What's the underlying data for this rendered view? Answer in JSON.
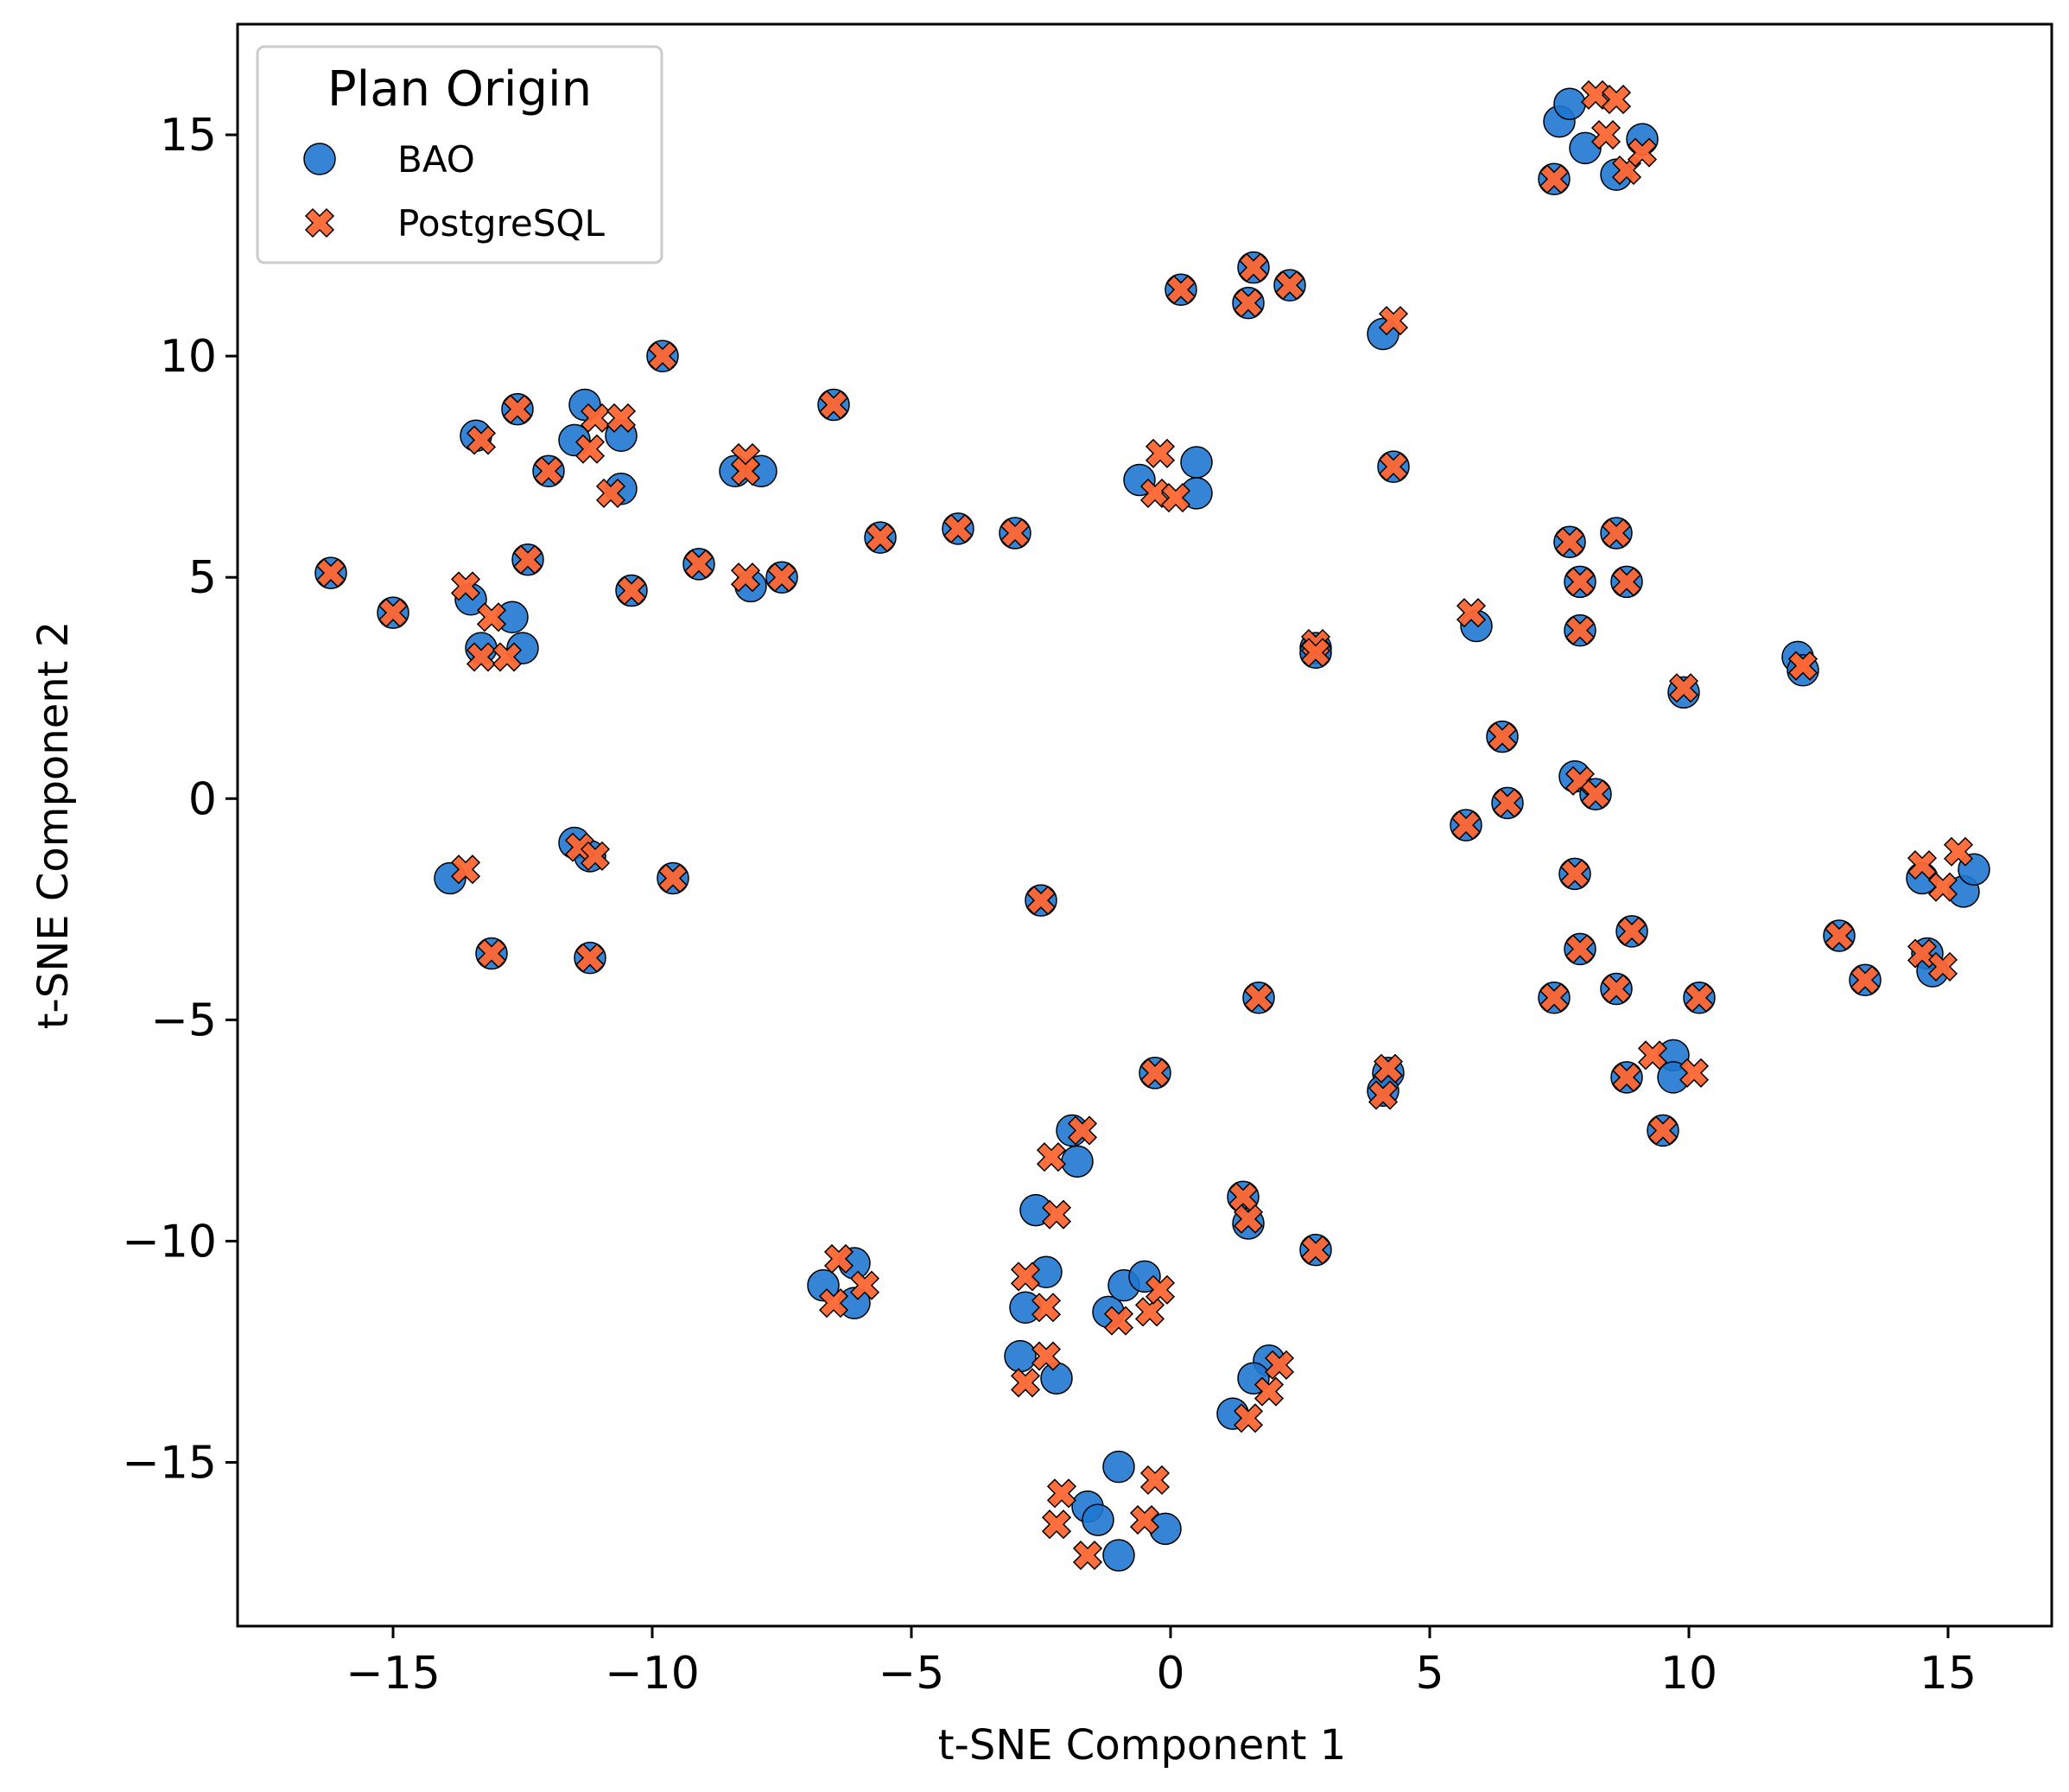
{
  "chart_data": {
    "type": "scatter",
    "xlabel": "t-SNE Component 1",
    "ylabel": "t-SNE Component 2",
    "xlim": [
      -18,
      17
    ],
    "ylim": [
      -18.7,
      17.5
    ],
    "xticks": [
      -15,
      -10,
      -5,
      0,
      5,
      10,
      15
    ],
    "yticks": [
      -15,
      -10,
      -5,
      0,
      5,
      10,
      15
    ],
    "xtick_labels": [
      "−15",
      "−10",
      "−5",
      "0",
      "5",
      "10",
      "15"
    ],
    "ytick_labels": [
      "−15",
      "−10",
      "−5",
      "0",
      "5",
      "10",
      "15"
    ],
    "grid": false,
    "legend": {
      "title": "Plan Origin",
      "position": "top-left"
    },
    "series": [
      {
        "name": "BAO",
        "marker": "circle",
        "color": "#1f77d0",
        "points": [
          [
            -16.2,
            5.1
          ],
          [
            -15.0,
            4.2
          ],
          [
            -13.4,
            8.2
          ],
          [
            -12.6,
            8.8
          ],
          [
            -13.5,
            4.5
          ],
          [
            -13.3,
            3.4
          ],
          [
            -12.7,
            4.1
          ],
          [
            -12.5,
            3.4
          ],
          [
            -12.4,
            5.4
          ],
          [
            -12.0,
            7.4
          ],
          [
            -11.3,
            8.9
          ],
          [
            -11.5,
            8.1
          ],
          [
            -10.6,
            8.2
          ],
          [
            -10.6,
            7.0
          ],
          [
            -10.4,
            4.7
          ],
          [
            -9.8,
            10.0
          ],
          [
            -9.1,
            5.3
          ],
          [
            -8.4,
            7.4
          ],
          [
            -7.9,
            7.4
          ],
          [
            -8.1,
            4.8
          ],
          [
            -7.5,
            5.0
          ],
          [
            -6.5,
            8.9
          ],
          [
            -5.6,
            5.9
          ],
          [
            -4.1,
            6.1
          ],
          [
            -3.0,
            6.0
          ],
          [
            -13.9,
            -1.8
          ],
          [
            -11.5,
            -1.0
          ],
          [
            -11.2,
            -1.3
          ],
          [
            -9.6,
            -1.8
          ],
          [
            -13.1,
            -3.5
          ],
          [
            -11.2,
            -3.6
          ],
          [
            -2.5,
            -2.3
          ],
          [
            0.2,
            11.5
          ],
          [
            1.6,
            12.0
          ],
          [
            1.5,
            11.2
          ],
          [
            2.3,
            11.6
          ],
          [
            4.1,
            10.5
          ],
          [
            4.3,
            7.5
          ],
          [
            -0.6,
            7.2
          ],
          [
            0.5,
            7.6
          ],
          [
            0.5,
            6.9
          ],
          [
            2.8,
            3.4
          ],
          [
            2.8,
            3.3
          ],
          [
            5.9,
            3.9
          ],
          [
            7.5,
            15.3
          ],
          [
            7.7,
            15.7
          ],
          [
            8.0,
            14.7
          ],
          [
            8.6,
            14.1
          ],
          [
            9.1,
            14.9
          ],
          [
            7.4,
            14.0
          ],
          [
            7.7,
            5.8
          ],
          [
            7.9,
            4.9
          ],
          [
            7.9,
            3.8
          ],
          [
            8.6,
            6.0
          ],
          [
            8.8,
            4.9
          ],
          [
            9.9,
            2.4
          ],
          [
            12.1,
            3.2
          ],
          [
            12.2,
            2.9
          ],
          [
            6.4,
            1.4
          ],
          [
            6.5,
            -0.1
          ],
          [
            5.7,
            -0.6
          ],
          [
            7.8,
            0.5
          ],
          [
            8.2,
            0.1
          ],
          [
            7.8,
            -1.7
          ],
          [
            7.9,
            -3.4
          ],
          [
            8.9,
            -3.0
          ],
          [
            7.4,
            -4.5
          ],
          [
            8.6,
            -4.3
          ],
          [
            10.2,
            -4.5
          ],
          [
            8.8,
            -6.3
          ],
          [
            9.7,
            -5.8
          ],
          [
            9.7,
            -6.3
          ],
          [
            9.5,
            -7.5
          ],
          [
            12.9,
            -3.1
          ],
          [
            13.4,
            -4.1
          ],
          [
            14.5,
            -1.8
          ],
          [
            14.6,
            -3.5
          ],
          [
            14.7,
            -3.9
          ],
          [
            15.3,
            -2.1
          ],
          [
            15.5,
            -1.6
          ],
          [
            1.7,
            -4.5
          ],
          [
            -0.3,
            -6.2
          ],
          [
            4.2,
            -6.2
          ],
          [
            4.1,
            -6.6
          ],
          [
            -1.9,
            -7.5
          ],
          [
            -1.8,
            -8.2
          ],
          [
            -2.6,
            -9.3
          ],
          [
            1.4,
            -9.0
          ],
          [
            1.5,
            -9.6
          ],
          [
            2.8,
            -10.2
          ],
          [
            -6.7,
            -11.0
          ],
          [
            -6.1,
            -10.5
          ],
          [
            -6.1,
            -11.4
          ],
          [
            -2.4,
            -10.7
          ],
          [
            -2.8,
            -11.5
          ],
          [
            -1.2,
            -11.6
          ],
          [
            -0.9,
            -11.0
          ],
          [
            -0.5,
            -10.8
          ],
          [
            -2.9,
            -12.6
          ],
          [
            -2.2,
            -13.1
          ],
          [
            1.9,
            -12.7
          ],
          [
            1.6,
            -13.1
          ],
          [
            1.2,
            -13.9
          ],
          [
            -1.0,
            -15.1
          ],
          [
            -1.6,
            -16.0
          ],
          [
            -1.4,
            -16.3
          ],
          [
            -1.0,
            -17.1
          ],
          [
            -0.1,
            -16.5
          ]
        ]
      },
      {
        "name": "PostgreSQL",
        "marker": "x",
        "color": "#ff6633",
        "points": [
          [
            -16.2,
            5.1
          ],
          [
            -15.0,
            4.2
          ],
          [
            -13.3,
            8.1
          ],
          [
            -12.6,
            8.8
          ],
          [
            -13.6,
            4.8
          ],
          [
            -13.3,
            3.2
          ],
          [
            -13.1,
            4.1
          ],
          [
            -12.8,
            3.2
          ],
          [
            -12.4,
            5.4
          ],
          [
            -12.0,
            7.4
          ],
          [
            -11.1,
            8.6
          ],
          [
            -11.2,
            7.9
          ],
          [
            -10.6,
            8.6
          ],
          [
            -10.8,
            6.9
          ],
          [
            -10.4,
            4.7
          ],
          [
            -9.8,
            10.0
          ],
          [
            -9.1,
            5.3
          ],
          [
            -8.2,
            7.7
          ],
          [
            -8.2,
            7.4
          ],
          [
            -8.2,
            5.0
          ],
          [
            -7.5,
            5.0
          ],
          [
            -6.5,
            8.9
          ],
          [
            -5.6,
            5.9
          ],
          [
            -4.1,
            6.1
          ],
          [
            -3.0,
            6.0
          ],
          [
            -13.6,
            -1.6
          ],
          [
            -11.4,
            -1.1
          ],
          [
            -11.1,
            -1.3
          ],
          [
            -9.6,
            -1.8
          ],
          [
            -13.1,
            -3.5
          ],
          [
            -11.2,
            -3.6
          ],
          [
            -2.5,
            -2.3
          ],
          [
            0.2,
            11.5
          ],
          [
            1.6,
            12.0
          ],
          [
            1.5,
            11.2
          ],
          [
            2.3,
            11.6
          ],
          [
            4.3,
            10.8
          ],
          [
            4.3,
            7.5
          ],
          [
            -0.2,
            7.8
          ],
          [
            -0.3,
            6.9
          ],
          [
            0.1,
            6.8
          ],
          [
            2.8,
            3.5
          ],
          [
            2.8,
            3.3
          ],
          [
            5.8,
            4.2
          ],
          [
            8.2,
            15.9
          ],
          [
            8.6,
            15.8
          ],
          [
            8.4,
            15.0
          ],
          [
            8.8,
            14.2
          ],
          [
            9.1,
            14.6
          ],
          [
            7.4,
            14.0
          ],
          [
            7.7,
            5.8
          ],
          [
            7.9,
            4.9
          ],
          [
            7.9,
            3.8
          ],
          [
            8.6,
            6.0
          ],
          [
            8.8,
            4.9
          ],
          [
            9.9,
            2.5
          ],
          [
            12.2,
            3.0
          ],
          [
            12.2,
            3.0
          ],
          [
            6.4,
            1.4
          ],
          [
            6.5,
            -0.1
          ],
          [
            5.7,
            -0.6
          ],
          [
            7.9,
            0.4
          ],
          [
            8.2,
            0.1
          ],
          [
            7.8,
            -1.7
          ],
          [
            7.9,
            -3.4
          ],
          [
            8.9,
            -3.0
          ],
          [
            7.4,
            -4.5
          ],
          [
            8.6,
            -4.3
          ],
          [
            10.2,
            -4.5
          ],
          [
            8.8,
            -6.3
          ],
          [
            9.3,
            -5.8
          ],
          [
            10.1,
            -6.2
          ],
          [
            9.5,
            -7.5
          ],
          [
            12.9,
            -3.1
          ],
          [
            13.4,
            -4.1
          ],
          [
            14.5,
            -1.5
          ],
          [
            14.5,
            -3.5
          ],
          [
            14.9,
            -3.8
          ],
          [
            14.9,
            -2.0
          ],
          [
            15.2,
            -1.2
          ],
          [
            1.7,
            -4.5
          ],
          [
            -0.3,
            -6.2
          ],
          [
            4.2,
            -6.1
          ],
          [
            4.1,
            -6.7
          ],
          [
            -1.7,
            -7.5
          ],
          [
            -2.3,
            -8.1
          ],
          [
            -2.2,
            -9.4
          ],
          [
            1.4,
            -9.0
          ],
          [
            1.5,
            -9.5
          ],
          [
            2.8,
            -10.2
          ],
          [
            -6.4,
            -10.4
          ],
          [
            -5.9,
            -11.0
          ],
          [
            -6.5,
            -11.4
          ],
          [
            -2.8,
            -10.8
          ],
          [
            -2.4,
            -11.5
          ],
          [
            -1.0,
            -11.8
          ],
          [
            -0.4,
            -11.6
          ],
          [
            -0.2,
            -11.1
          ],
          [
            -2.8,
            -13.2
          ],
          [
            -2.4,
            -12.6
          ],
          [
            2.1,
            -12.8
          ],
          [
            1.9,
            -13.4
          ],
          [
            1.5,
            -14.0
          ],
          [
            -0.3,
            -15.4
          ],
          [
            -2.1,
            -15.7
          ],
          [
            -2.2,
            -16.4
          ],
          [
            -1.6,
            -17.1
          ],
          [
            -0.5,
            -16.3
          ]
        ]
      }
    ]
  }
}
